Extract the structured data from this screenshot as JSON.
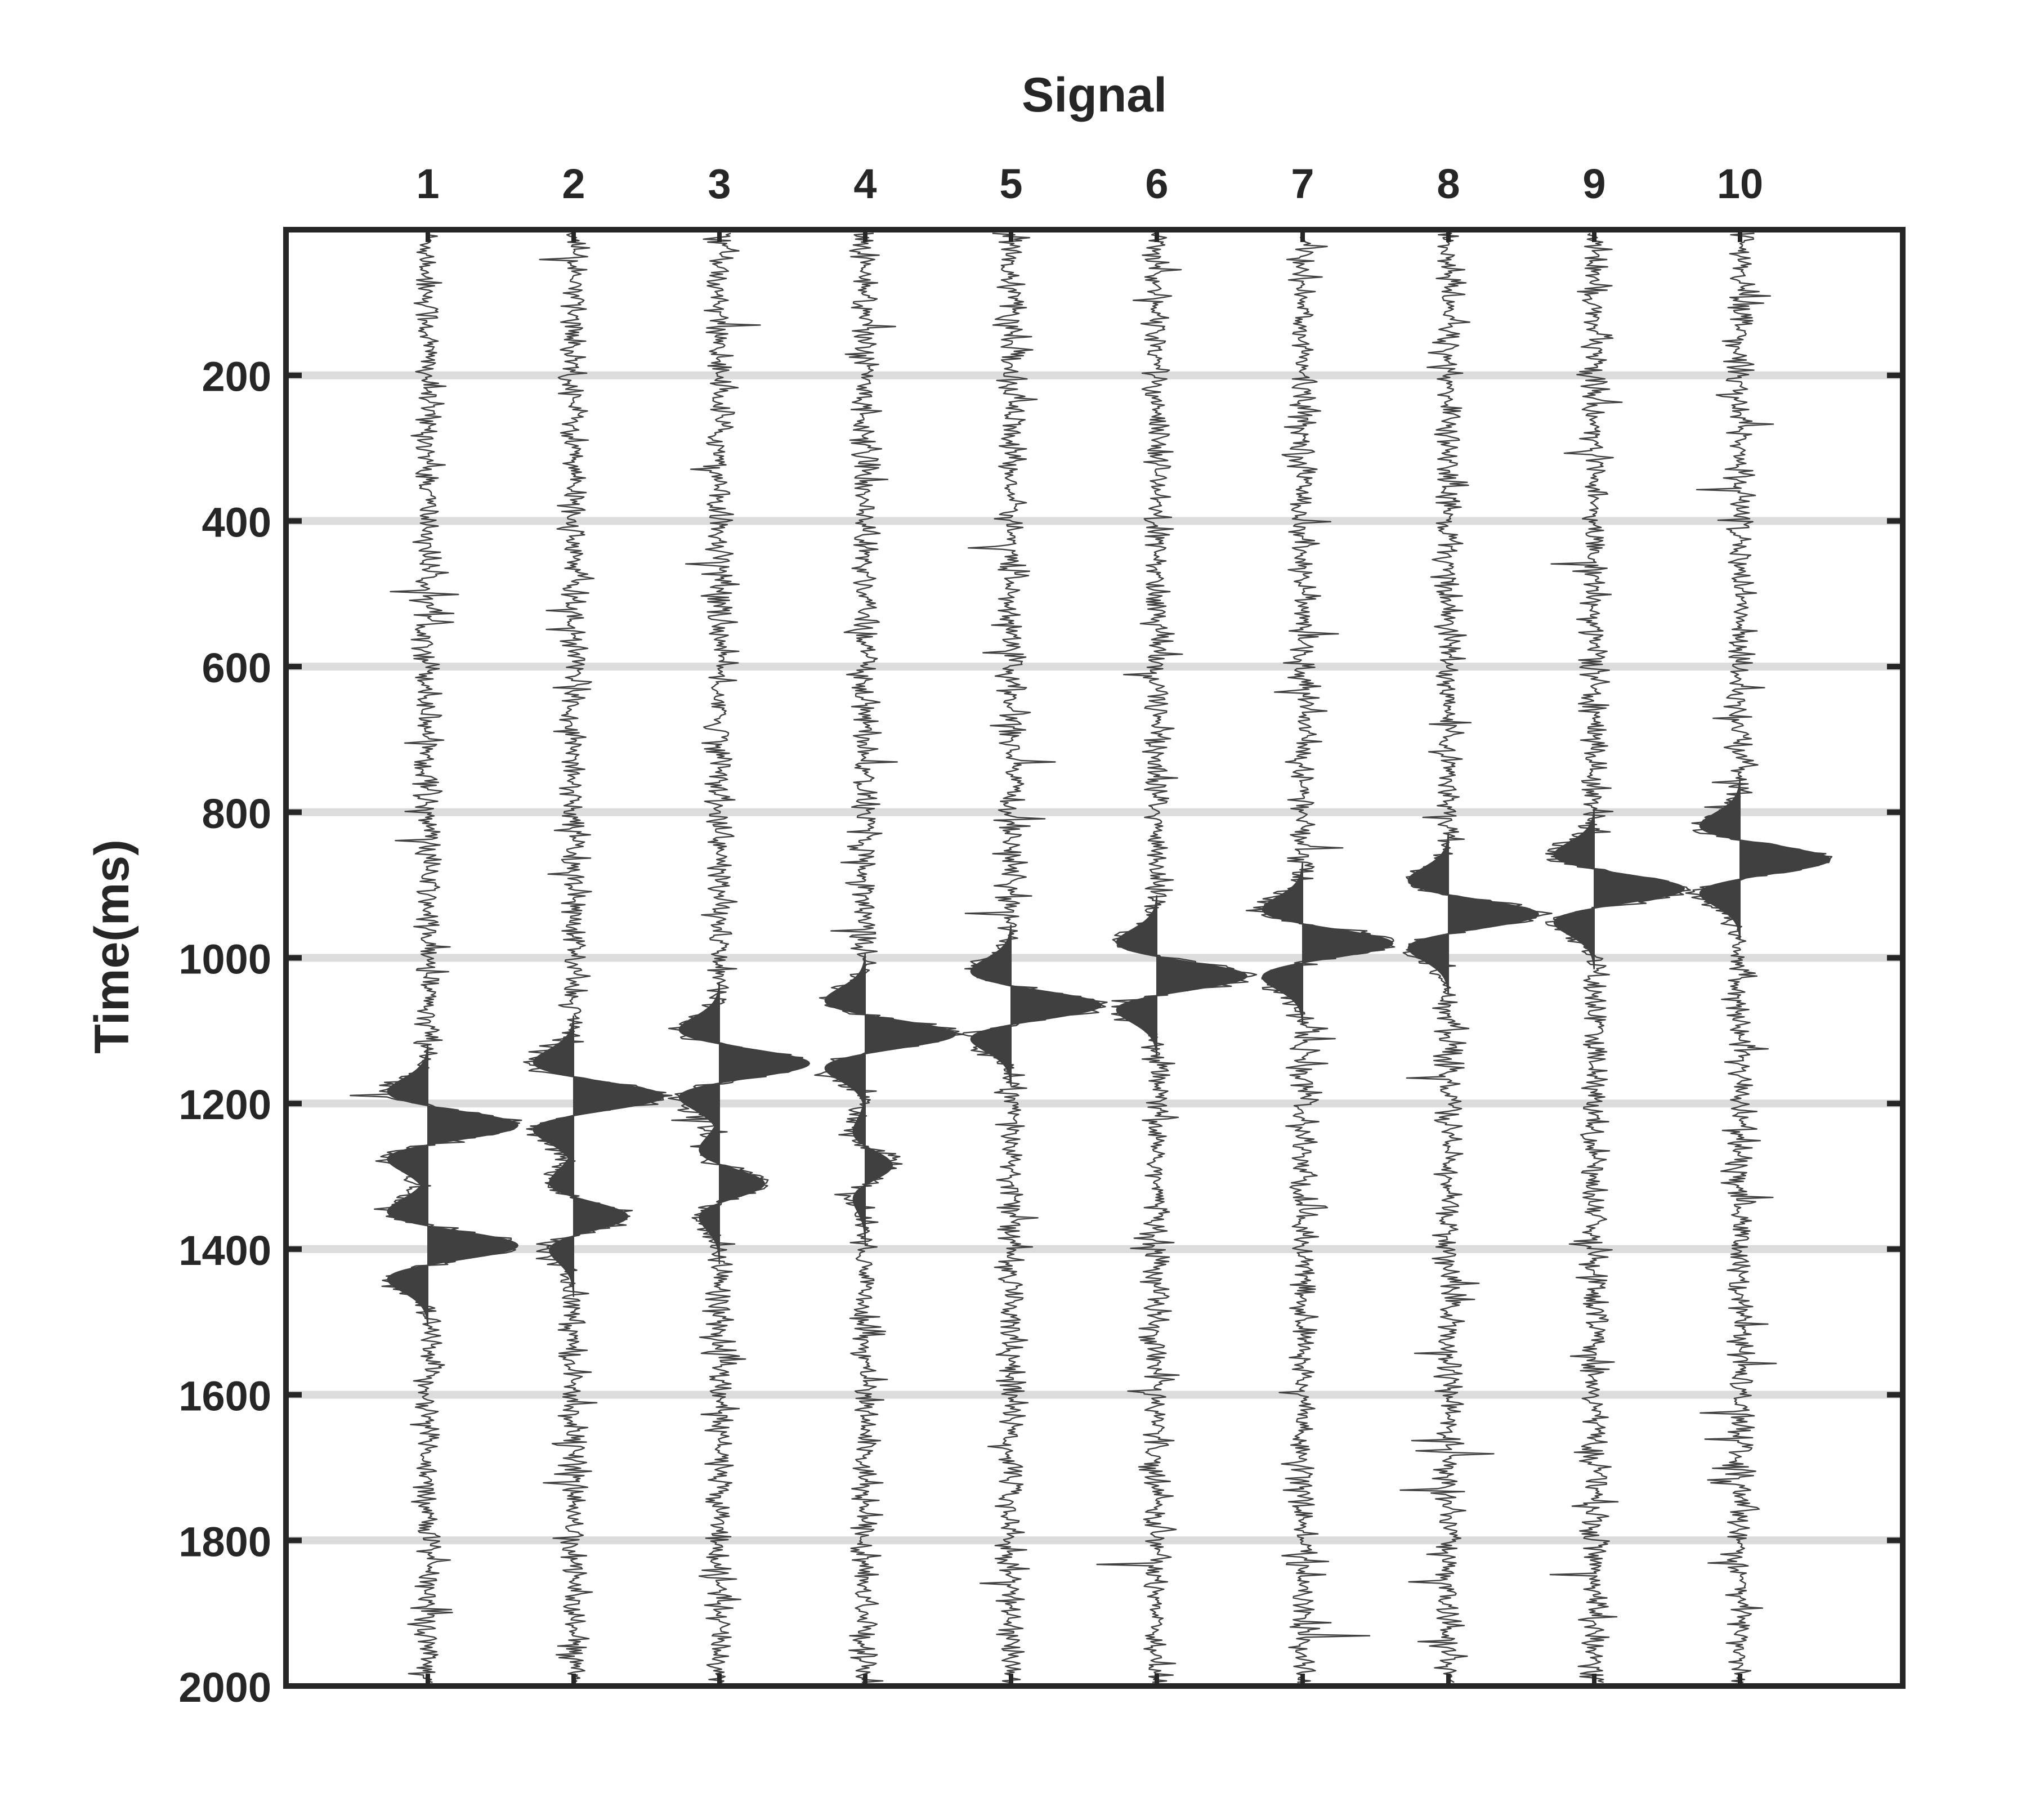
{
  "chart_data": {
    "type": "line",
    "title": "Signal",
    "xlabel": "",
    "ylabel": "Time(ms)",
    "x_ticks": [
      "1",
      "2",
      "3",
      "4",
      "5",
      "6",
      "7",
      "8",
      "9",
      "10"
    ],
    "y_ticks": [
      "200",
      "400",
      "600",
      "800",
      "1000",
      "1200",
      "1400",
      "1600",
      "1800",
      "2000"
    ],
    "ylim": [
      0,
      2000
    ],
    "y_reversed": true,
    "x_axis_position": "top",
    "grid": "horizontal",
    "series": [
      {
        "trace": 1,
        "events": [
          {
            "time": 1230,
            "amplitude": 1.0
          },
          {
            "time": 1395,
            "amplitude": 1.0
          }
        ]
      },
      {
        "trace": 2,
        "events": [
          {
            "time": 1190,
            "amplitude": 1.0
          },
          {
            "time": 1355,
            "amplitude": 0.6
          }
        ]
      },
      {
        "trace": 3,
        "events": [
          {
            "time": 1145,
            "amplitude": 1.0
          },
          {
            "time": 1310,
            "amplitude": 0.5
          }
        ]
      },
      {
        "trace": 4,
        "events": [
          {
            "time": 1105,
            "amplitude": 1.0
          },
          {
            "time": 1285,
            "amplitude": 0.3
          }
        ]
      },
      {
        "trace": 5,
        "events": [
          {
            "time": 1065,
            "amplitude": 1.0
          }
        ]
      },
      {
        "trace": 6,
        "events": [
          {
            "time": 1025,
            "amplitude": 1.0
          }
        ]
      },
      {
        "trace": 7,
        "events": [
          {
            "time": 980,
            "amplitude": 1.0
          }
        ]
      },
      {
        "trace": 8,
        "events": [
          {
            "time": 940,
            "amplitude": 1.0
          }
        ]
      },
      {
        "trace": 9,
        "events": [
          {
            "time": 905,
            "amplitude": 1.0
          }
        ]
      },
      {
        "trace": 10,
        "events": [
          {
            "time": 865,
            "amplitude": 1.0
          }
        ]
      }
    ],
    "colors": {
      "trace": "#404040",
      "grid": "#dcdcdc",
      "axis": "#262626",
      "text": "#262626"
    }
  }
}
